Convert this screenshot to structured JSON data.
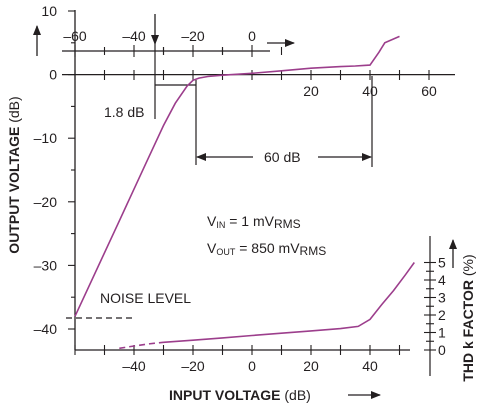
{
  "chart_data": {
    "type": "line",
    "colors": {
      "curve": "#9c3e8c",
      "axis": "#231f20"
    },
    "output_curve": {
      "x": [
        -60,
        -45,
        -36,
        -30,
        -26,
        -22,
        -20,
        -18,
        -15,
        -10,
        0,
        10,
        20,
        30,
        35,
        38,
        40,
        43,
        45,
        50
      ],
      "y": [
        -38.0,
        -23.0,
        -14.0,
        -8.0,
        -4.5,
        -1.8,
        -0.9,
        -0.55,
        -0.3,
        -0.1,
        0.2,
        0.6,
        1.0,
        1.25,
        1.35,
        1.45,
        1.5,
        3.5,
        5.0,
        6.0
      ]
    },
    "thd_curve": {
      "dashed_x": [
        -45,
        -40,
        -35,
        -30
      ],
      "dashed_y": [
        0.1,
        0.23,
        0.35,
        0.44
      ],
      "x": [
        -30,
        -20,
        -10,
        0,
        10,
        20,
        30,
        36,
        40,
        44,
        48,
        52,
        55
      ],
      "y": [
        0.44,
        0.56,
        0.69,
        0.83,
        0.96,
        1.09,
        1.22,
        1.35,
        1.75,
        2.6,
        3.4,
        4.3,
        5.0
      ]
    },
    "left_axis": {
      "label": "OUTPUT VOLTAGE",
      "unit": "(dB)",
      "ticks": [
        {
          "value": 10,
          "label": "10"
        },
        {
          "value": 0,
          "label": "0"
        },
        {
          "value": -10,
          "label": "–10"
        },
        {
          "value": -20,
          "label": "–20"
        },
        {
          "value": -30,
          "label": "–30"
        },
        {
          "value": -40,
          "label": "–40"
        }
      ]
    },
    "right_axis": {
      "label": "THD k FACTOR",
      "unit": "(%)",
      "ticks": [
        "0",
        "1",
        "2",
        "3",
        "4",
        "5"
      ]
    },
    "bottom_axis": {
      "label": "INPUT VOLTAGE",
      "unit": "(dB)",
      "ticks": [
        {
          "value": -40,
          "label": "–40"
        },
        {
          "value": -20,
          "label": "–20"
        },
        {
          "value": 0,
          "label": "0"
        },
        {
          "value": 20,
          "label": "20"
        },
        {
          "value": 40,
          "label": "40"
        }
      ]
    },
    "top_axis_ticks": [
      {
        "value": -60,
        "label": "–60"
      },
      {
        "value": -40,
        "label": "–40"
      },
      {
        "value": -20,
        "label": "–20"
      },
      {
        "value": 0,
        "label": "0"
      }
    ],
    "zero_axis_ticks": [
      {
        "value": 20,
        "label": "20"
      },
      {
        "value": 40,
        "label": "40"
      },
      {
        "value": 60,
        "label": "60"
      }
    ],
    "annotations": {
      "gain_label": "1.8 dB",
      "range_label": "60 dB",
      "noise_level": "NOISE LEVEL",
      "vin_prefix": "V",
      "vin_sub": "IN",
      "vin_value": " = 1 mV",
      "vin_unit": "RMS",
      "vout_prefix": "V",
      "vout_sub": "OUT",
      "vout_value": " = 850 mV",
      "vout_unit": "RMS"
    }
  }
}
